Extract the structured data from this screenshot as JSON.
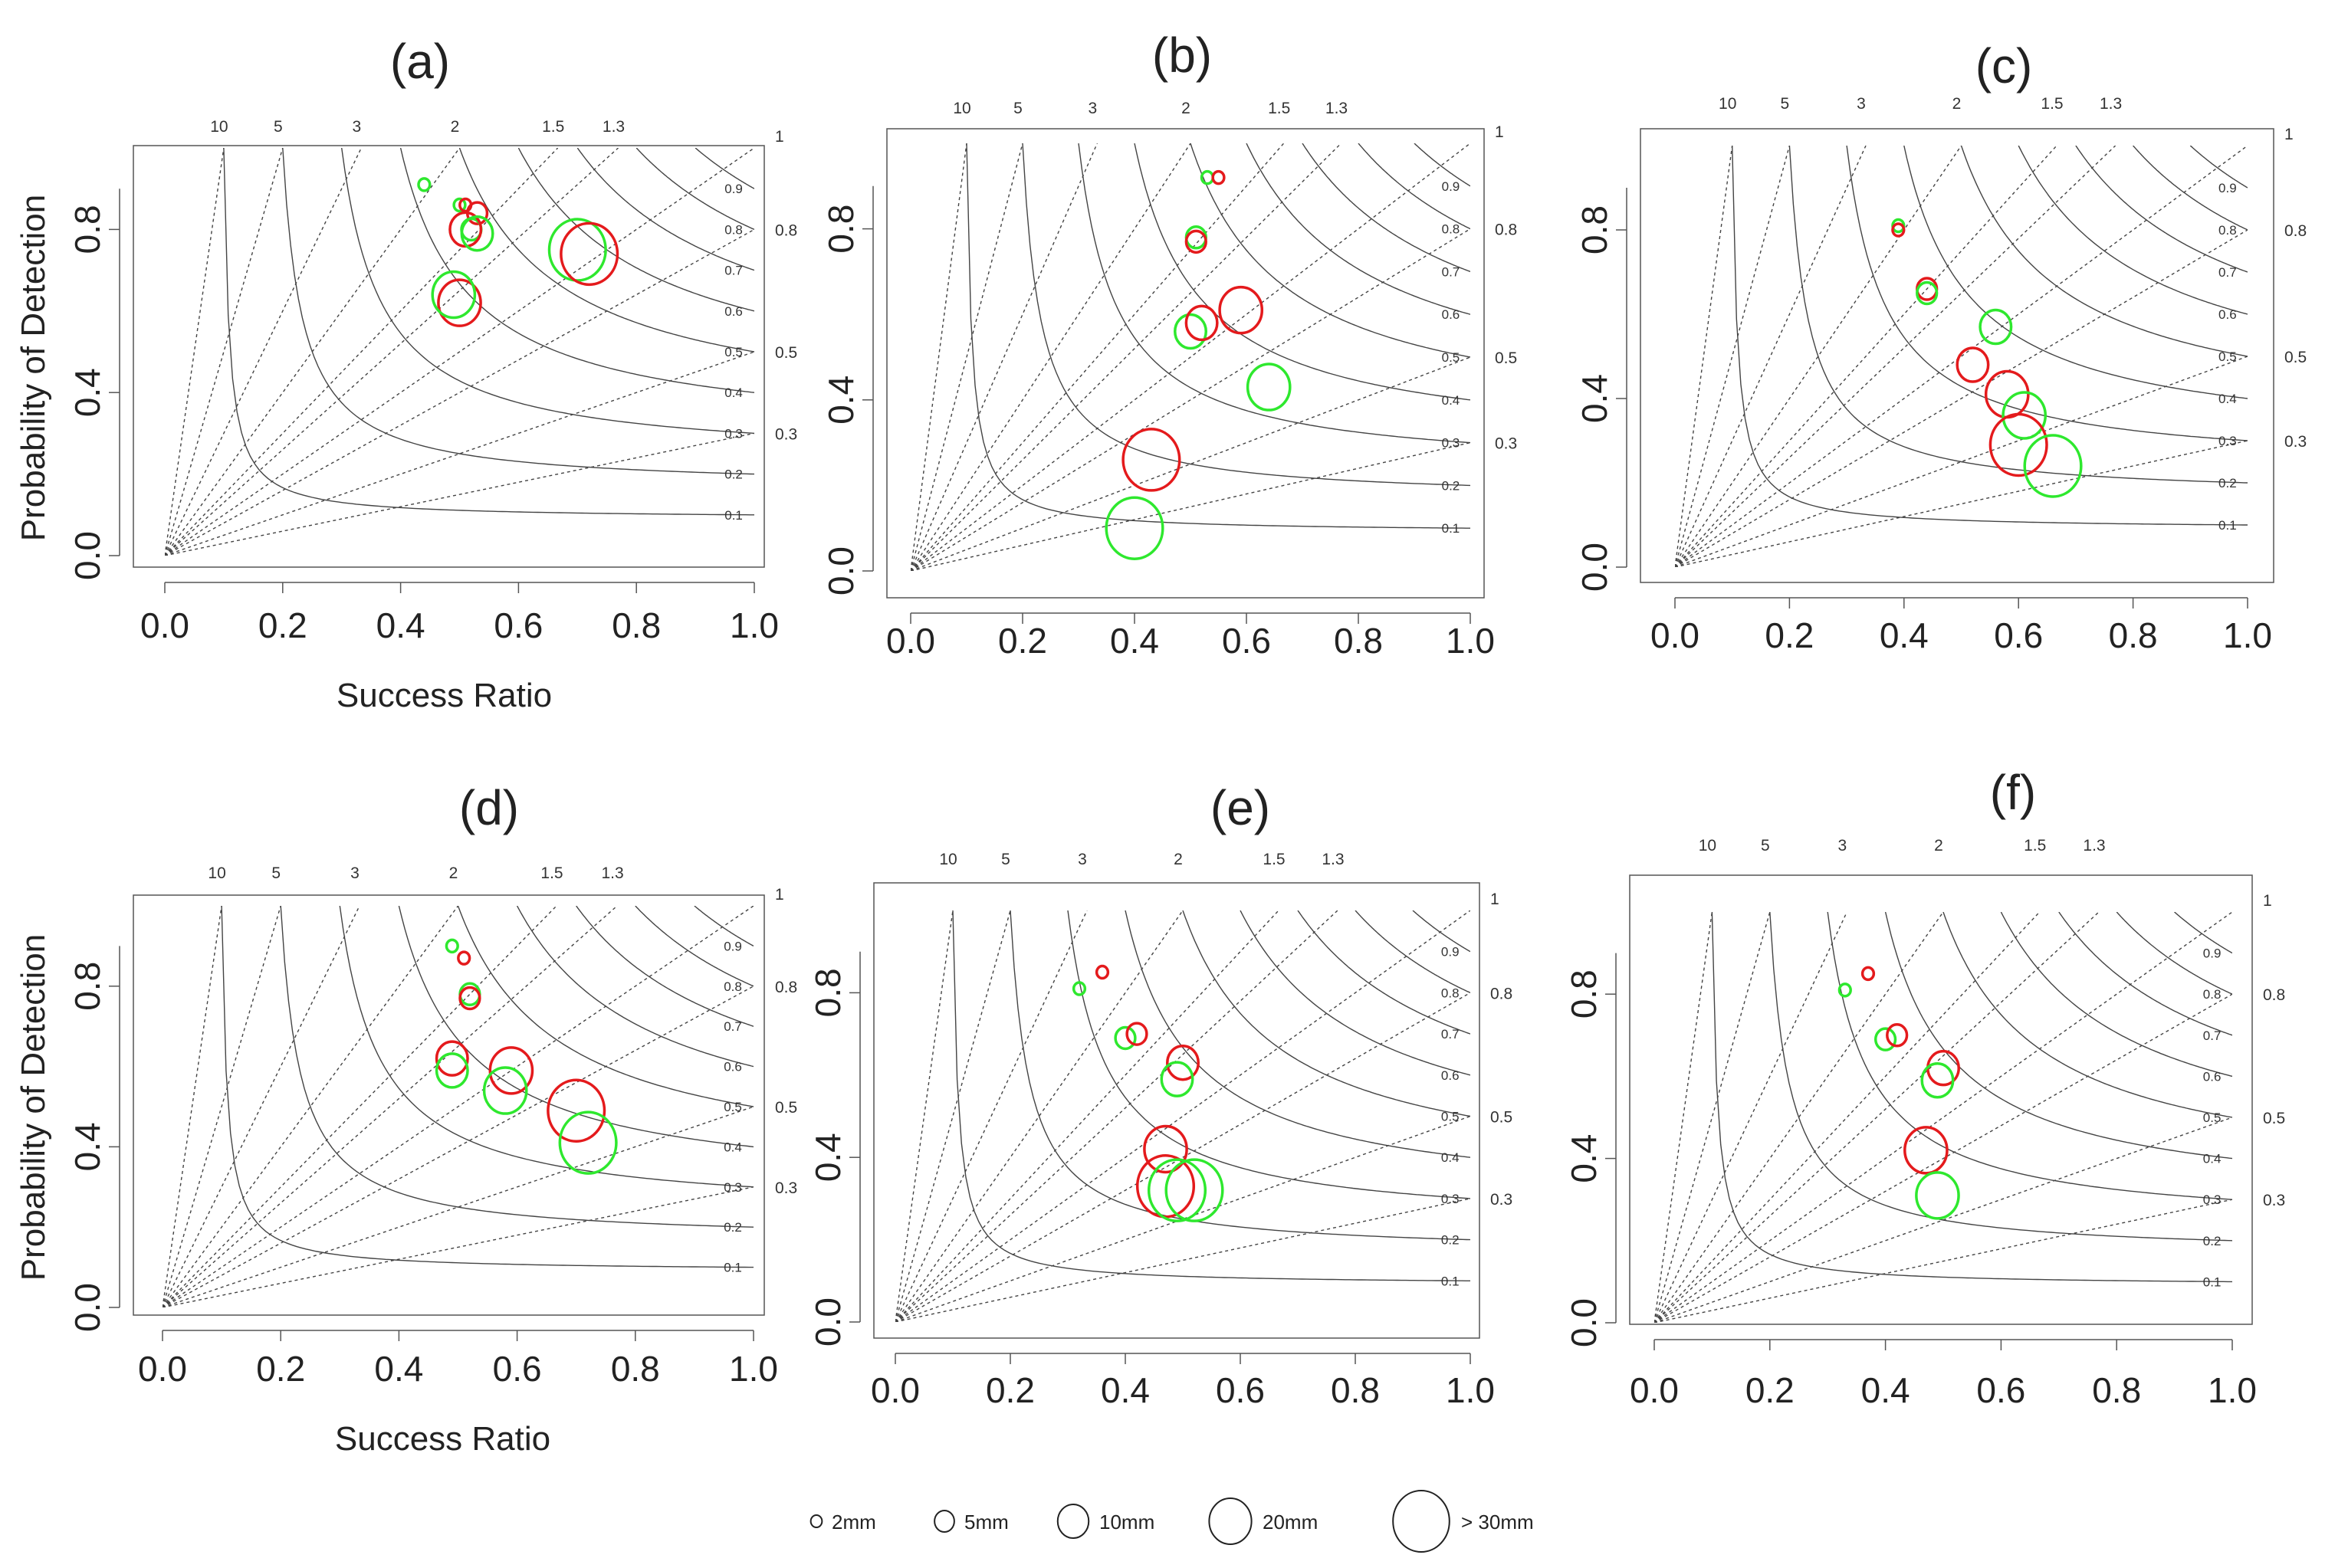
{
  "chart_data": {
    "type": "scatter",
    "subtype": "performance-diagram",
    "xlabel": "Success Ratio",
    "ylabel": "Probability of Detection",
    "xlim": [
      0,
      1
    ],
    "ylim": [
      0,
      1
    ],
    "xticks": [
      "0.0",
      "0.2",
      "0.4",
      "0.6",
      "0.8",
      "1.0"
    ],
    "yticks": [
      "0.0",
      "0.4",
      "0.8"
    ],
    "bias_lines": [
      {
        "value": 10,
        "label": "10"
      },
      {
        "value": 5,
        "label": "5"
      },
      {
        "value": 3,
        "label": "3"
      },
      {
        "value": 2,
        "label": "2"
      },
      {
        "value": 1.5,
        "label": "1.5"
      },
      {
        "value": 1.3,
        "label": "1.3"
      },
      {
        "value": 1,
        "label": "1"
      },
      {
        "value": 0.8,
        "label": "0.8"
      },
      {
        "value": 0.5,
        "label": "0.5"
      },
      {
        "value": 0.3,
        "label": "0.3"
      }
    ],
    "csi_lines": [
      {
        "value": 0.1,
        "label": "0.1"
      },
      {
        "value": 0.2,
        "label": "0.2"
      },
      {
        "value": 0.3,
        "label": "0.3"
      },
      {
        "value": 0.4,
        "label": "0.4"
      },
      {
        "value": 0.5,
        "label": "0.5"
      },
      {
        "value": 0.6,
        "label": "0.6"
      },
      {
        "value": 0.7,
        "label": "0.7"
      },
      {
        "value": 0.8,
        "label": "0.8"
      },
      {
        "value": 0.9,
        "label": "0.9"
      }
    ],
    "series_colors": {
      "red": "#e41a1c",
      "green": "#2ee82e"
    },
    "threshold_sizes": {
      "2mm": 1,
      "5mm": 2,
      "10mm": 3,
      "20mm": 4,
      ">30mm": 5
    },
    "legend": [
      {
        "label": "2mm",
        "size": 1
      },
      {
        "label": "5mm",
        "size": 2
      },
      {
        "label": "10mm",
        "size": 3
      },
      {
        "label": "20mm",
        "size": 4
      },
      {
        "label": "> 30mm",
        "size": 5
      }
    ],
    "panels": [
      {
        "label": "(a)",
        "show_xlabel": true,
        "points": [
          {
            "series": "green",
            "size": 1,
            "sr": 0.44,
            "pod": 0.91
          },
          {
            "series": "green",
            "size": 1,
            "sr": 0.5,
            "pod": 0.86
          },
          {
            "series": "red",
            "size": 1,
            "sr": 0.51,
            "pod": 0.86
          },
          {
            "series": "red",
            "size": 2,
            "sr": 0.53,
            "pod": 0.84
          },
          {
            "series": "green",
            "size": 2,
            "sr": 0.52,
            "pod": 0.8
          },
          {
            "series": "red",
            "size": 3,
            "sr": 0.51,
            "pod": 0.8
          },
          {
            "series": "green",
            "size": 3,
            "sr": 0.53,
            "pod": 0.79
          },
          {
            "series": "red",
            "size": 4,
            "sr": 0.5,
            "pod": 0.62
          },
          {
            "series": "green",
            "size": 4,
            "sr": 0.49,
            "pod": 0.64
          },
          {
            "series": "green",
            "size": 5,
            "sr": 0.7,
            "pod": 0.75
          },
          {
            "series": "red",
            "size": 5,
            "sr": 0.72,
            "pod": 0.74
          }
        ]
      },
      {
        "label": "(b)",
        "show_xlabel": false,
        "points": [
          {
            "series": "green",
            "size": 1,
            "sr": 0.53,
            "pod": 0.92
          },
          {
            "series": "red",
            "size": 1,
            "sr": 0.55,
            "pod": 0.92
          },
          {
            "series": "green",
            "size": 2,
            "sr": 0.51,
            "pod": 0.78
          },
          {
            "series": "red",
            "size": 2,
            "sr": 0.51,
            "pod": 0.77
          },
          {
            "series": "green",
            "size": 3,
            "sr": 0.5,
            "pod": 0.56
          },
          {
            "series": "red",
            "size": 3,
            "sr": 0.52,
            "pod": 0.58
          },
          {
            "series": "red",
            "size": 4,
            "sr": 0.59,
            "pod": 0.61
          },
          {
            "series": "green",
            "size": 4,
            "sr": 0.64,
            "pod": 0.43
          },
          {
            "series": "red",
            "size": 5,
            "sr": 0.43,
            "pod": 0.26
          },
          {
            "series": "green",
            "size": 5,
            "sr": 0.4,
            "pod": 0.1
          }
        ]
      },
      {
        "label": "(c)",
        "show_xlabel": false,
        "points": [
          {
            "series": "green",
            "size": 1,
            "sr": 0.39,
            "pod": 0.81
          },
          {
            "series": "red",
            "size": 1,
            "sr": 0.39,
            "pod": 0.8
          },
          {
            "series": "red",
            "size": 2,
            "sr": 0.44,
            "pod": 0.66
          },
          {
            "series": "green",
            "size": 2,
            "sr": 0.44,
            "pod": 0.65
          },
          {
            "series": "green",
            "size": 3,
            "sr": 0.56,
            "pod": 0.57
          },
          {
            "series": "red",
            "size": 3,
            "sr": 0.52,
            "pod": 0.48
          },
          {
            "series": "red",
            "size": 4,
            "sr": 0.58,
            "pod": 0.41
          },
          {
            "series": "green",
            "size": 4,
            "sr": 0.61,
            "pod": 0.36
          },
          {
            "series": "red",
            "size": 5,
            "sr": 0.6,
            "pod": 0.29
          },
          {
            "series": "green",
            "size": 5,
            "sr": 0.66,
            "pod": 0.24
          }
        ]
      },
      {
        "label": "(d)",
        "show_xlabel": true,
        "points": [
          {
            "series": "green",
            "size": 1,
            "sr": 0.49,
            "pod": 0.9
          },
          {
            "series": "red",
            "size": 1,
            "sr": 0.51,
            "pod": 0.87
          },
          {
            "series": "green",
            "size": 2,
            "sr": 0.52,
            "pod": 0.78
          },
          {
            "series": "red",
            "size": 2,
            "sr": 0.52,
            "pod": 0.77
          },
          {
            "series": "red",
            "size": 3,
            "sr": 0.49,
            "pod": 0.62
          },
          {
            "series": "green",
            "size": 3,
            "sr": 0.49,
            "pod": 0.59
          },
          {
            "series": "red",
            "size": 4,
            "sr": 0.59,
            "pod": 0.59
          },
          {
            "series": "green",
            "size": 4,
            "sr": 0.58,
            "pod": 0.54
          },
          {
            "series": "red",
            "size": 5,
            "sr": 0.7,
            "pod": 0.49
          },
          {
            "series": "green",
            "size": 5,
            "sr": 0.72,
            "pod": 0.41
          }
        ]
      },
      {
        "label": "(e)",
        "show_xlabel": false,
        "points": [
          {
            "series": "green",
            "size": 1,
            "sr": 0.32,
            "pod": 0.81
          },
          {
            "series": "red",
            "size": 1,
            "sr": 0.36,
            "pod": 0.85
          },
          {
            "series": "green",
            "size": 2,
            "sr": 0.4,
            "pod": 0.69
          },
          {
            "series": "red",
            "size": 2,
            "sr": 0.42,
            "pod": 0.7
          },
          {
            "series": "red",
            "size": 3,
            "sr": 0.5,
            "pod": 0.63
          },
          {
            "series": "green",
            "size": 3,
            "sr": 0.49,
            "pod": 0.59
          },
          {
            "series": "red",
            "size": 4,
            "sr": 0.47,
            "pod": 0.42
          },
          {
            "series": "red",
            "size": 5,
            "sr": 0.47,
            "pod": 0.33
          },
          {
            "series": "green",
            "size": 5,
            "sr": 0.49,
            "pod": 0.32
          },
          {
            "series": "green",
            "size": 5,
            "sr": 0.52,
            "pod": 0.32
          }
        ]
      },
      {
        "label": "(f)",
        "show_xlabel": false,
        "points": [
          {
            "series": "green",
            "size": 1,
            "sr": 0.33,
            "pod": 0.81
          },
          {
            "series": "red",
            "size": 1,
            "sr": 0.37,
            "pod": 0.85
          },
          {
            "series": "green",
            "size": 2,
            "sr": 0.4,
            "pod": 0.69
          },
          {
            "series": "red",
            "size": 2,
            "sr": 0.42,
            "pod": 0.7
          },
          {
            "series": "red",
            "size": 3,
            "sr": 0.5,
            "pod": 0.62
          },
          {
            "series": "green",
            "size": 3,
            "sr": 0.49,
            "pod": 0.59
          },
          {
            "series": "red",
            "size": 4,
            "sr": 0.47,
            "pod": 0.42
          },
          {
            "series": "green",
            "size": 4,
            "sr": 0.49,
            "pod": 0.31
          }
        ]
      }
    ]
  }
}
